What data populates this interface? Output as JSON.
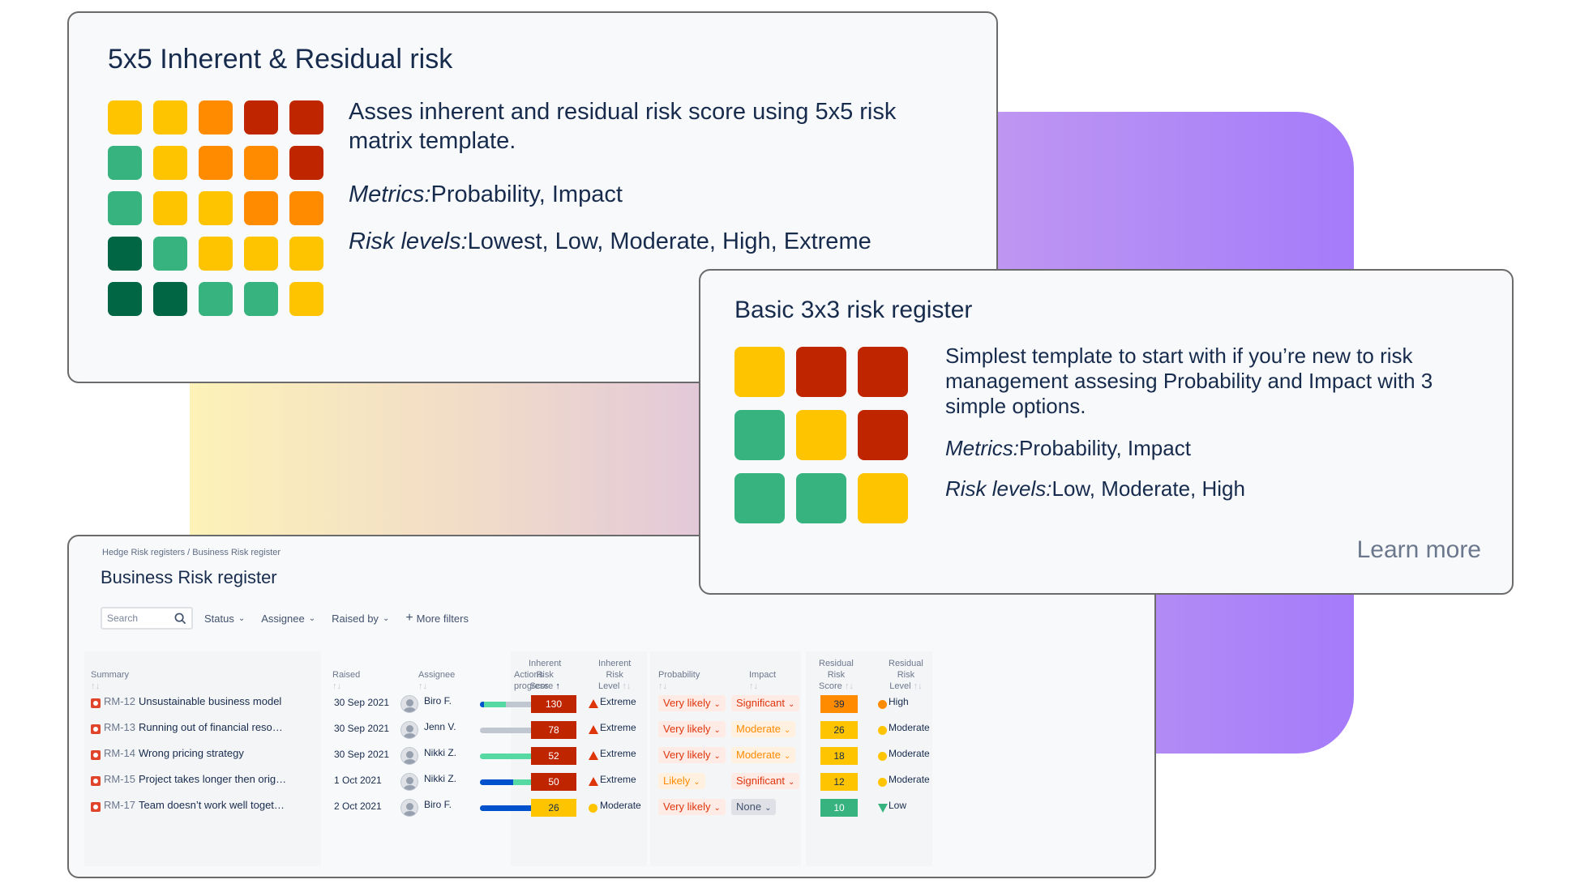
{
  "colors": {
    "dark_green": "#006644",
    "green": "#36b37e",
    "yellow": "#ffc400",
    "orange": "#ff8b00",
    "red": "#bf2600",
    "extreme_red": "#de350b"
  },
  "card_5x5": {
    "title": "5x5 Inherent & Residual risk",
    "matrix": [
      [
        "yellow",
        "yellow",
        "orange",
        "red",
        "red"
      ],
      [
        "green",
        "yellow",
        "orange",
        "orange",
        "red"
      ],
      [
        "green",
        "yellow",
        "yellow",
        "orange",
        "orange"
      ],
      [
        "dark_green",
        "green",
        "yellow",
        "yellow",
        "yellow"
      ],
      [
        "dark_green",
        "dark_green",
        "green",
        "green",
        "yellow"
      ]
    ],
    "description": "Asses inherent and residual risk score using 5x5 risk matrix template.",
    "metrics_label": "Metrics:",
    "metrics_value": "Probability, Impact",
    "levels_label": "Risk levels:",
    "levels_value": "Lowest, Low, Moderate, High, Extreme"
  },
  "card_3x3": {
    "title": "Basic 3x3 risk register",
    "matrix": [
      [
        "yellow",
        "red",
        "red"
      ],
      [
        "green",
        "yellow",
        "red"
      ],
      [
        "green",
        "green",
        "yellow"
      ]
    ],
    "description": "Simplest template to start with if you’re new to risk management assesing Probability and Impact with 3 simple options.",
    "metrics_label": "Metrics:",
    "metrics_value": "Probability, Impact",
    "levels_label": "Risk levels:",
    "levels_value": "Low, Moderate, High",
    "learn_more": "Learn more"
  },
  "register": {
    "breadcrumb": "Hedge Risk registers / Business Risk register",
    "title": "Business Risk register",
    "search_placeholder": "Search",
    "filters": [
      "Status",
      "Assignee",
      "Raised by"
    ],
    "more_filters": "More filters",
    "headers": {
      "summary": "Summary",
      "raised": "Raised",
      "assignee": "Assignee",
      "actions": "Actions progress",
      "inherent_score": [
        "Inherent",
        "Risk Score"
      ],
      "inherent_level": [
        "Inherent",
        "Risk Level"
      ],
      "probability": "Probability",
      "impact": "Impact",
      "residual_score": [
        "Residual",
        "Risk Score"
      ],
      "residual_level": [
        "Residual",
        "Risk Level"
      ]
    },
    "rows": [
      {
        "key": "RM-12",
        "summary": "Unsustainable business model",
        "raised": "30 Sep 2021",
        "assignee": "Biro F.",
        "progress_done": 0.05,
        "progress_mid": 0.25,
        "inh_score": "130",
        "inh_level": "Extreme",
        "prob": "Very likely",
        "impact": "Significant",
        "res_score": "39",
        "res_level": "High"
      },
      {
        "key": "RM-13",
        "summary": "Running out of financial reso…",
        "raised": "30 Sep 2021",
        "assignee": "Jenn V.",
        "progress_done": 0,
        "progress_mid": 0,
        "inh_score": "78",
        "inh_level": "Extreme",
        "prob": "Very likely",
        "impact": "Moderate",
        "res_score": "26",
        "res_level": "Moderate"
      },
      {
        "key": "RM-14",
        "summary": "Wrong pricing strategy",
        "raised": "30 Sep 2021",
        "assignee": "Nikki Z.",
        "progress_done": 0,
        "progress_mid": 0.72,
        "inh_score": "52",
        "inh_level": "Extreme",
        "prob": "Very likely",
        "impact": "Moderate",
        "res_score": "18",
        "res_level": "Moderate"
      },
      {
        "key": "RM-15",
        "summary": "Project takes longer then orig…",
        "raised": "1 Oct 2021",
        "assignee": "Nikki Z.",
        "progress_done": 0.38,
        "progress_mid": 0.65,
        "inh_score": "50",
        "inh_level": "Extreme",
        "prob": "Likely",
        "impact": "Significant",
        "res_score": "12",
        "res_level": "Moderate"
      },
      {
        "key": "RM-17",
        "summary": "Team doesn’t work well toget…",
        "raised": "2 Oct 2021",
        "assignee": "Biro F.",
        "progress_done": 0.78,
        "progress_mid": 0.2,
        "inh_score": "26",
        "inh_level": "Moderate",
        "prob": "Very likely",
        "impact": "None",
        "res_score": "10",
        "res_level": "Low"
      }
    ]
  }
}
